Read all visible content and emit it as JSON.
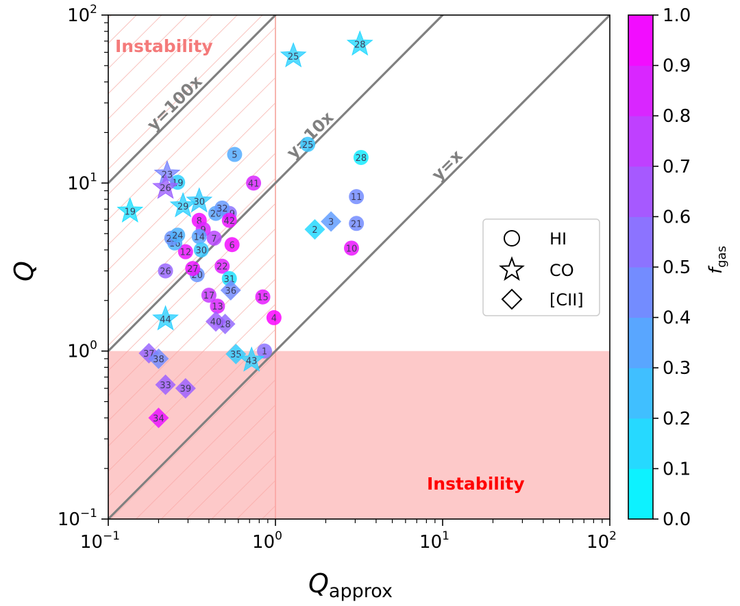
{
  "chart_data": {
    "type": "scatter",
    "xscale": "log",
    "yscale": "log",
    "xlim": [
      0.1,
      100
    ],
    "ylim": [
      0.1,
      100
    ],
    "xlabel": "Q",
    "xlabel_sub": "approx",
    "ylabel": "Q",
    "x_ticks": [
      {
        "base": "10",
        "exp": "−1"
      },
      {
        "base": "10",
        "exp": "0"
      },
      {
        "base": "10",
        "exp": "1"
      },
      {
        "base": "10",
        "exp": "2"
      }
    ],
    "y_ticks": [
      {
        "base": "10",
        "exp": "−1"
      },
      {
        "base": "10",
        "exp": "0"
      },
      {
        "base": "10",
        "exp": "1"
      },
      {
        "base": "10",
        "exp": "2"
      }
    ],
    "reference_lines": [
      {
        "label": "y=x",
        "factor": 1
      },
      {
        "label": "y=10x",
        "factor": 10
      },
      {
        "label": "y=100x",
        "factor": 100
      }
    ],
    "instability_regions": [
      {
        "label": "Instability",
        "text_color": "#f47a7a",
        "kind": "hatched",
        "note": "x < 1"
      },
      {
        "label": "Instability",
        "text_color": "#ff0000",
        "kind": "filled",
        "note": "y < 1"
      }
    ],
    "legend": {
      "placement": "center-right",
      "entries": [
        {
          "marker": "circle",
          "label": "HI"
        },
        {
          "marker": "star",
          "label": "CO"
        },
        {
          "marker": "diamond",
          "label": "[CII]"
        }
      ]
    },
    "colorbar": {
      "label": "f",
      "label_sub": "gas",
      "range": [
        0,
        1
      ],
      "ticks": [
        "0.0",
        "0.1",
        "0.2",
        "0.3",
        "0.4",
        "0.5",
        "0.6",
        "0.7",
        "0.8",
        "0.9",
        "1.0"
      ],
      "colormap": "cool",
      "colors": {
        "low": "#00ffff",
        "high": "#ff00ff"
      }
    },
    "points": [
      {
        "id": "1",
        "marker": "circle",
        "x": 0.86,
        "y": 1.0,
        "f": 0.55
      },
      {
        "id": "2",
        "marker": "diamond",
        "x": 1.72,
        "y": 5.3,
        "f": 0.15
      },
      {
        "id": "3",
        "marker": "diamond",
        "x": 2.15,
        "y": 5.9,
        "f": 0.38
      },
      {
        "id": "4",
        "marker": "circle",
        "x": 0.98,
        "y": 1.58,
        "f": 0.98
      },
      {
        "id": "5",
        "marker": "circle",
        "x": 0.57,
        "y": 14.8,
        "f": 0.33
      },
      {
        "id": "6",
        "marker": "circle",
        "x": 0.55,
        "y": 4.3,
        "f": 0.95
      },
      {
        "id": "7",
        "marker": "circle",
        "x": 0.43,
        "y": 4.7,
        "f": 0.72
      },
      {
        "id": "8",
        "marker": "circle",
        "x": 0.35,
        "y": 6.0,
        "f": 0.95
      },
      {
        "id": "9",
        "marker": "circle",
        "x": 0.37,
        "y": 5.3,
        "f": 0.85
      },
      {
        "id": "10",
        "marker": "circle",
        "x": 2.85,
        "y": 4.1,
        "f": 0.92
      },
      {
        "id": "11",
        "marker": "circle",
        "x": 3.05,
        "y": 8.3,
        "f": 0.45
      },
      {
        "id": "12",
        "marker": "circle",
        "x": 0.29,
        "y": 3.9,
        "f": 0.92
      },
      {
        "id": "13",
        "marker": "circle",
        "x": 0.45,
        "y": 1.85,
        "f": 0.85
      },
      {
        "id": "14",
        "marker": "circle",
        "x": 0.35,
        "y": 4.8,
        "f": 0.35
      },
      {
        "id": "15",
        "marker": "circle",
        "x": 0.84,
        "y": 2.1,
        "f": 0.9
      },
      {
        "id": "16",
        "marker": "circle",
        "x": 0.25,
        "y": 4.4,
        "f": 0.3
      },
      {
        "id": "17",
        "marker": "circle",
        "x": 0.4,
        "y": 2.15,
        "f": 0.78
      },
      {
        "id": "18",
        "marker": "diamond",
        "x": 0.5,
        "y": 1.45,
        "f": 0.58
      },
      {
        "id": "19",
        "marker": "circle",
        "x": 0.53,
        "y": 6.6,
        "f": 0.55
      },
      {
        "id": "19",
        "marker": "circle",
        "x": 0.26,
        "y": 10.1,
        "f": 0.18
      },
      {
        "id": "20",
        "marker": "circle",
        "x": 0.34,
        "y": 2.85,
        "f": 0.42
      },
      {
        "id": "20",
        "marker": "circle",
        "x": 0.44,
        "y": 6.6,
        "f": 0.35
      },
      {
        "id": "21",
        "marker": "circle",
        "x": 3.05,
        "y": 5.75,
        "f": 0.45
      },
      {
        "id": "22",
        "marker": "circle",
        "x": 0.48,
        "y": 3.2,
        "f": 0.88
      },
      {
        "id": "23",
        "marker": "star",
        "x": 0.225,
        "y": 11.3,
        "f": 0.48
      },
      {
        "id": "23",
        "marker": "circle",
        "x": 0.24,
        "y": 4.7,
        "f": 0.42
      },
      {
        "id": "24",
        "marker": "circle",
        "x": 0.26,
        "y": 4.9,
        "f": 0.3
      },
      {
        "id": "25",
        "marker": "star",
        "x": 1.28,
        "y": 57.0,
        "f": 0.18
      },
      {
        "id": "25",
        "marker": "circle",
        "x": 1.56,
        "y": 17.0,
        "f": 0.22
      },
      {
        "id": "26",
        "marker": "star",
        "x": 0.22,
        "y": 9.4,
        "f": 0.62
      },
      {
        "id": "26",
        "marker": "circle",
        "x": 0.22,
        "y": 3.0,
        "f": 0.6
      },
      {
        "id": "27",
        "marker": "circle",
        "x": 0.32,
        "y": 3.1,
        "f": 0.92
      },
      {
        "id": "28",
        "marker": "star",
        "x": 3.2,
        "y": 67.0,
        "f": 0.15
      },
      {
        "id": "28",
        "marker": "circle",
        "x": 3.25,
        "y": 14.2,
        "f": 0.08
      },
      {
        "id": "29",
        "marker": "star",
        "x": 0.28,
        "y": 7.3,
        "f": 0.18
      },
      {
        "id": "30",
        "marker": "star",
        "x": 0.35,
        "y": 7.8,
        "f": 0.2
      },
      {
        "id": "30",
        "marker": "circle",
        "x": 0.36,
        "y": 4.0,
        "f": 0.22
      },
      {
        "id": "31",
        "marker": "circle",
        "x": 0.53,
        "y": 2.7,
        "f": 0.12
      },
      {
        "id": "32",
        "marker": "circle",
        "x": 0.48,
        "y": 7.1,
        "f": 0.4
      },
      {
        "id": "33",
        "marker": "diamond",
        "x": 0.22,
        "y": 0.63,
        "f": 0.62
      },
      {
        "id": "34",
        "marker": "diamond",
        "x": 0.2,
        "y": 0.4,
        "f": 0.92
      },
      {
        "id": "35",
        "marker": "diamond",
        "x": 0.58,
        "y": 0.96,
        "f": 0.2
      },
      {
        "id": "36",
        "marker": "diamond",
        "x": 0.54,
        "y": 2.3,
        "f": 0.45
      },
      {
        "id": "37",
        "marker": "diamond",
        "x": 0.175,
        "y": 0.97,
        "f": 0.6
      },
      {
        "id": "38",
        "marker": "diamond",
        "x": 0.2,
        "y": 0.9,
        "f": 0.45
      },
      {
        "id": "39",
        "marker": "diamond",
        "x": 0.29,
        "y": 0.6,
        "f": 0.62
      },
      {
        "id": "40",
        "marker": "diamond",
        "x": 0.44,
        "y": 1.5,
        "f": 0.62
      },
      {
        "id": "41",
        "marker": "circle",
        "x": 0.74,
        "y": 10.0,
        "f": 0.85
      },
      {
        "id": "42",
        "marker": "circle",
        "x": 0.53,
        "y": 6.0,
        "f": 0.92
      },
      {
        "id": "43",
        "marker": "star",
        "x": 0.72,
        "y": 0.88,
        "f": 0.18
      },
      {
        "id": "44",
        "marker": "star",
        "x": 0.22,
        "y": 1.55,
        "f": 0.18
      },
      {
        "id": "19",
        "marker": "star",
        "x": 0.135,
        "y": 6.8,
        "f": 0.12
      }
    ]
  }
}
